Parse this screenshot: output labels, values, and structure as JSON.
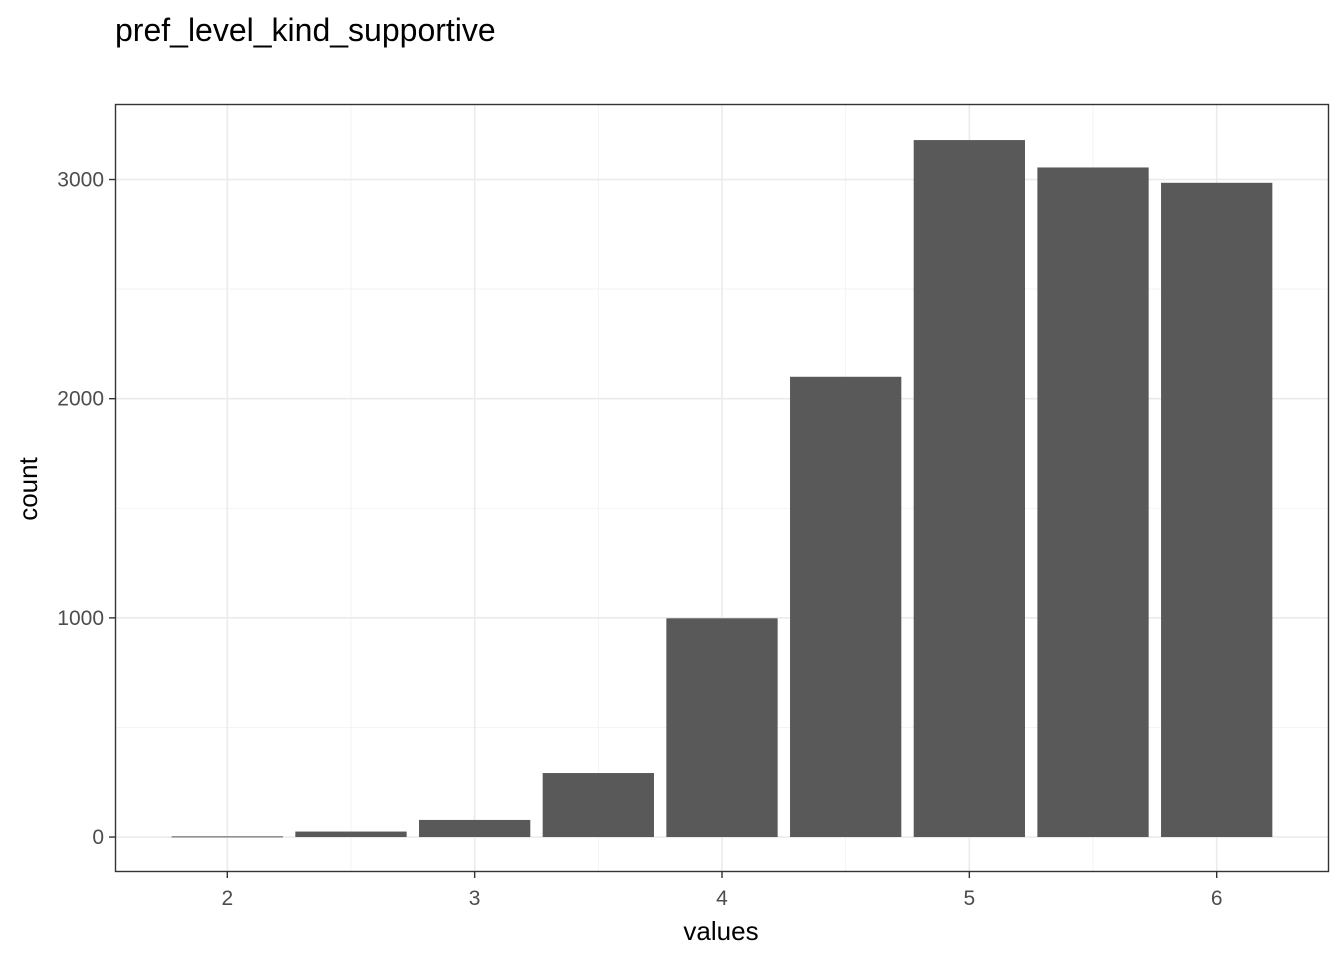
{
  "chart_data": {
    "type": "bar",
    "title": "pref_level_kind_supportive",
    "xlabel": "values",
    "ylabel": "count",
    "x": [
      2.0,
      2.5,
      3.0,
      3.5,
      4.0,
      4.5,
      5.0,
      5.5,
      6.0
    ],
    "values": [
      3,
      25,
      78,
      292,
      998,
      2100,
      3180,
      3055,
      2985
    ],
    "bar_width": 0.45,
    "xlim": [
      1.55,
      6.45
    ],
    "ylim": [
      -155,
      3340
    ],
    "x_ticks": [
      2,
      3,
      4,
      5,
      6
    ],
    "x_tick_labels": [
      "2",
      "3",
      "4",
      "5",
      "6"
    ],
    "y_ticks": [
      0,
      1000,
      2000,
      3000
    ],
    "y_tick_labels": [
      "0",
      "1000",
      "2000",
      "3000"
    ],
    "grid": true,
    "bar_color": "#595959"
  }
}
